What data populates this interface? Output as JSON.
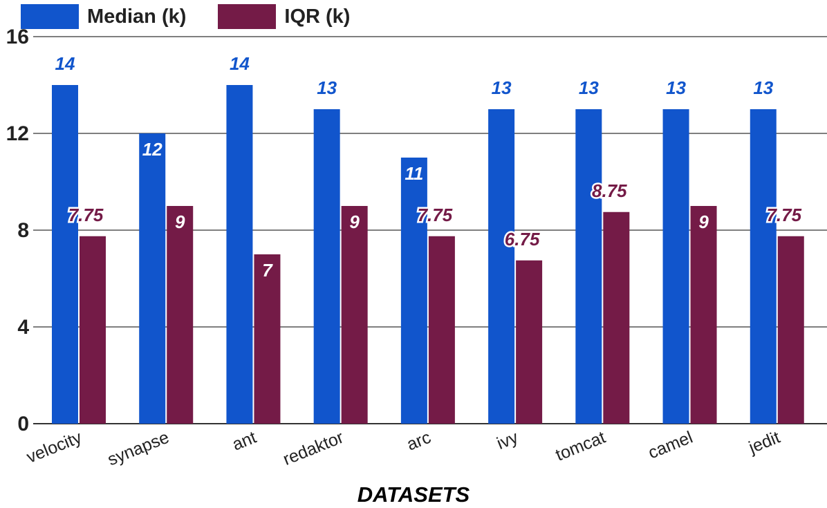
{
  "chart_data": {
    "type": "bar",
    "title": "",
    "xlabel": "DATASETS",
    "ylabel": "",
    "ylim": [
      0,
      16
    ],
    "yticks": [
      0,
      4,
      8,
      12,
      16
    ],
    "grid": true,
    "legend_position": "top-left",
    "categories": [
      "velocity",
      "synapse",
      "ant",
      "redaktor",
      "arc",
      "ivy",
      "tomcat",
      "camel",
      "jedit"
    ],
    "series": [
      {
        "name": "Median (k)",
        "color": "#1155CC",
        "values": [
          14,
          12,
          14,
          13,
          11,
          13,
          13,
          13,
          13
        ],
        "labels": [
          "14",
          "12",
          "14",
          "13",
          "11",
          "13",
          "13",
          "13",
          "13"
        ]
      },
      {
        "name": "IQR (k)",
        "color": "#741B47",
        "values": [
          7.75,
          9,
          7,
          9,
          7.75,
          6.75,
          8.75,
          9,
          7.75
        ],
        "labels": [
          "7.75",
          "9",
          "7",
          "9",
          "7.75",
          "6.75",
          "8.75",
          "9",
          "7.75"
        ]
      }
    ]
  }
}
